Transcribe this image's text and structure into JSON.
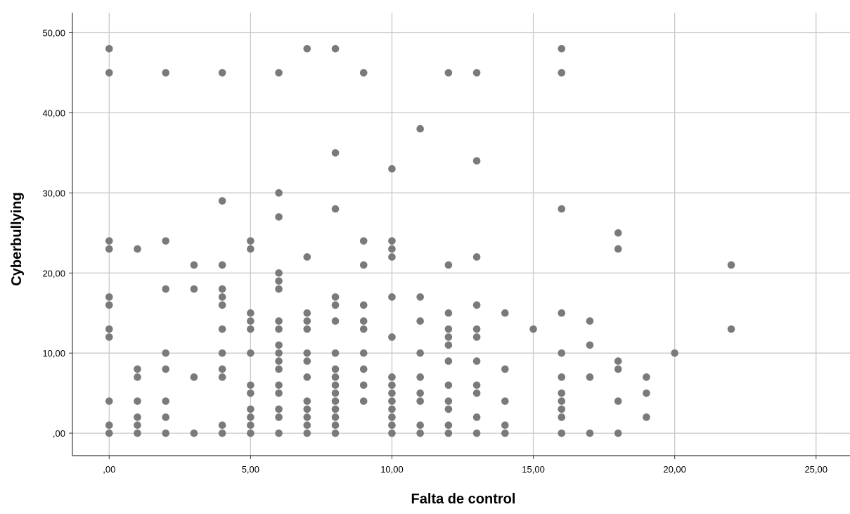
{
  "chart_data": {
    "type": "scatter",
    "xlabel": "Falta de control",
    "ylabel": "Cyberbullying",
    "xlim": [
      -1.3,
      26.2
    ],
    "ylim": [
      -2.8,
      52.5
    ],
    "x_ticks": [
      0,
      5,
      10,
      15,
      20,
      25
    ],
    "x_tick_labels": [
      ",00",
      "5,00",
      "10,00",
      "15,00",
      "20,00",
      "25,00"
    ],
    "y_ticks": [
      0,
      10,
      20,
      30,
      40,
      50
    ],
    "y_tick_labels": [
      ",00",
      "10,00",
      "20,00",
      "30,00",
      "40,00",
      "50,00"
    ],
    "grid": true,
    "colors": {
      "marker": "#7a7a7a",
      "grid": "#c8c8c8",
      "axis": "#3c3c3c"
    },
    "points": [
      [
        0,
        48
      ],
      [
        0,
        45
      ],
      [
        0,
        24
      ],
      [
        0,
        23
      ],
      [
        0,
        17
      ],
      [
        0,
        16
      ],
      [
        0,
        13
      ],
      [
        0,
        12
      ],
      [
        0,
        4
      ],
      [
        0,
        1
      ],
      [
        0,
        0
      ],
      [
        1,
        23
      ],
      [
        1,
        8
      ],
      [
        1,
        7
      ],
      [
        1,
        4
      ],
      [
        1,
        2
      ],
      [
        1,
        1
      ],
      [
        1,
        0
      ],
      [
        2,
        45
      ],
      [
        2,
        24
      ],
      [
        2,
        18
      ],
      [
        2,
        10
      ],
      [
        2,
        8
      ],
      [
        2,
        4
      ],
      [
        2,
        2
      ],
      [
        2,
        0
      ],
      [
        3,
        21
      ],
      [
        3,
        18
      ],
      [
        3,
        7
      ],
      [
        3,
        0
      ],
      [
        4,
        45
      ],
      [
        4,
        29
      ],
      [
        4,
        21
      ],
      [
        4,
        18
      ],
      [
        4,
        17
      ],
      [
        4,
        16
      ],
      [
        4,
        13
      ],
      [
        4,
        10
      ],
      [
        4,
        8
      ],
      [
        4,
        7
      ],
      [
        4,
        1
      ],
      [
        4,
        0
      ],
      [
        5,
        24
      ],
      [
        5,
        23
      ],
      [
        5,
        15
      ],
      [
        5,
        14
      ],
      [
        5,
        13
      ],
      [
        5,
        10
      ],
      [
        5,
        6
      ],
      [
        5,
        5
      ],
      [
        5,
        3
      ],
      [
        5,
        2
      ],
      [
        5,
        1
      ],
      [
        5,
        0
      ],
      [
        6,
        45
      ],
      [
        6,
        30
      ],
      [
        6,
        27
      ],
      [
        6,
        20
      ],
      [
        6,
        19
      ],
      [
        6,
        18
      ],
      [
        6,
        14
      ],
      [
        6,
        13
      ],
      [
        6,
        11
      ],
      [
        6,
        10
      ],
      [
        6,
        9
      ],
      [
        6,
        8
      ],
      [
        6,
        6
      ],
      [
        6,
        5
      ],
      [
        6,
        3
      ],
      [
        6,
        2
      ],
      [
        6,
        0
      ],
      [
        7,
        48
      ],
      [
        7,
        22
      ],
      [
        7,
        15
      ],
      [
        7,
        14
      ],
      [
        7,
        13
      ],
      [
        7,
        10
      ],
      [
        7,
        9
      ],
      [
        7,
        7
      ],
      [
        7,
        4
      ],
      [
        7,
        3
      ],
      [
        7,
        2
      ],
      [
        7,
        1
      ],
      [
        7,
        0
      ],
      [
        8,
        48
      ],
      [
        8,
        35
      ],
      [
        8,
        28
      ],
      [
        8,
        17
      ],
      [
        8,
        16
      ],
      [
        8,
        14
      ],
      [
        8,
        10
      ],
      [
        8,
        8
      ],
      [
        8,
        7
      ],
      [
        8,
        6
      ],
      [
        8,
        5
      ],
      [
        8,
        4
      ],
      [
        8,
        3
      ],
      [
        8,
        2
      ],
      [
        8,
        1
      ],
      [
        8,
        0
      ],
      [
        9,
        45
      ],
      [
        9,
        24
      ],
      [
        9,
        21
      ],
      [
        9,
        16
      ],
      [
        9,
        14
      ],
      [
        9,
        13
      ],
      [
        9,
        10
      ],
      [
        9,
        8
      ],
      [
        9,
        6
      ],
      [
        9,
        4
      ],
      [
        10,
        33
      ],
      [
        10,
        24
      ],
      [
        10,
        23
      ],
      [
        10,
        22
      ],
      [
        10,
        17
      ],
      [
        10,
        12
      ],
      [
        10,
        7
      ],
      [
        10,
        6
      ],
      [
        10,
        5
      ],
      [
        10,
        4
      ],
      [
        10,
        3
      ],
      [
        10,
        2
      ],
      [
        10,
        1
      ],
      [
        10,
        0
      ],
      [
        11,
        38
      ],
      [
        11,
        17
      ],
      [
        11,
        14
      ],
      [
        11,
        10
      ],
      [
        11,
        7
      ],
      [
        11,
        5
      ],
      [
        11,
        4
      ],
      [
        11,
        1
      ],
      [
        11,
        0
      ],
      [
        12,
        45
      ],
      [
        12,
        21
      ],
      [
        12,
        15
      ],
      [
        12,
        13
      ],
      [
        12,
        12
      ],
      [
        12,
        11
      ],
      [
        12,
        9
      ],
      [
        12,
        6
      ],
      [
        12,
        4
      ],
      [
        12,
        3
      ],
      [
        12,
        1
      ],
      [
        12,
        0
      ],
      [
        13,
        45
      ],
      [
        13,
        34
      ],
      [
        13,
        22
      ],
      [
        13,
        16
      ],
      [
        13,
        13
      ],
      [
        13,
        12
      ],
      [
        13,
        9
      ],
      [
        13,
        6
      ],
      [
        13,
        5
      ],
      [
        13,
        2
      ],
      [
        13,
        0
      ],
      [
        14,
        15
      ],
      [
        14,
        8
      ],
      [
        14,
        4
      ],
      [
        14,
        1
      ],
      [
        14,
        0
      ],
      [
        15,
        13
      ],
      [
        16,
        48
      ],
      [
        16,
        45
      ],
      [
        16,
        28
      ],
      [
        16,
        15
      ],
      [
        16,
        10
      ],
      [
        16,
        7
      ],
      [
        16,
        5
      ],
      [
        16,
        4
      ],
      [
        16,
        3
      ],
      [
        16,
        2
      ],
      [
        16,
        0
      ],
      [
        17,
        14
      ],
      [
        17,
        11
      ],
      [
        17,
        7
      ],
      [
        17,
        0
      ],
      [
        18,
        25
      ],
      [
        18,
        23
      ],
      [
        18,
        9
      ],
      [
        18,
        8
      ],
      [
        18,
        4
      ],
      [
        18,
        0
      ],
      [
        19,
        7
      ],
      [
        19,
        5
      ],
      [
        19,
        2
      ],
      [
        20,
        10
      ],
      [
        22,
        21
      ],
      [
        22,
        13
      ]
    ]
  }
}
